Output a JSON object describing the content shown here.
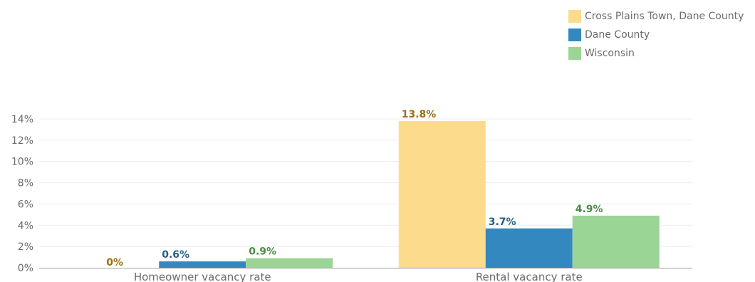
{
  "legend": {
    "items": [
      {
        "label": "Cross Plains Town, Dane County",
        "color": "#fcdc8c"
      },
      {
        "label": "Dane County",
        "color": "#3389bf"
      },
      {
        "label": "Wisconsin",
        "color": "#9bd595"
      }
    ]
  },
  "chart_data": {
    "type": "bar",
    "categories": [
      "Homeowner vacancy rate",
      "Rental vacancy rate"
    ],
    "series": [
      {
        "name": "Cross Plains Town, Dane County",
        "values": [
          0,
          13.8
        ],
        "color": "#fcdc8c",
        "label_color": "#9a6f12",
        "labels": [
          "0%",
          "13.8%"
        ]
      },
      {
        "name": "Dane County",
        "values": [
          0.6,
          3.7
        ],
        "color": "#3389bf",
        "label_color": "#235f86",
        "labels": [
          "0.6%",
          "3.7%"
        ]
      },
      {
        "name": "Wisconsin",
        "values": [
          0.9,
          4.9
        ],
        "color": "#9bd595",
        "label_color": "#4a8a45",
        "labels": [
          "0.9%",
          "4.9%"
        ]
      }
    ],
    "ylim": [
      0,
      14
    ],
    "yticks": [
      0,
      2,
      4,
      6,
      8,
      10,
      12,
      14
    ],
    "ytick_labels": [
      "0%",
      "2%",
      "4%",
      "6%",
      "8%",
      "10%",
      "12%",
      "14%"
    ],
    "grid": true,
    "legend_position": "top-right"
  }
}
